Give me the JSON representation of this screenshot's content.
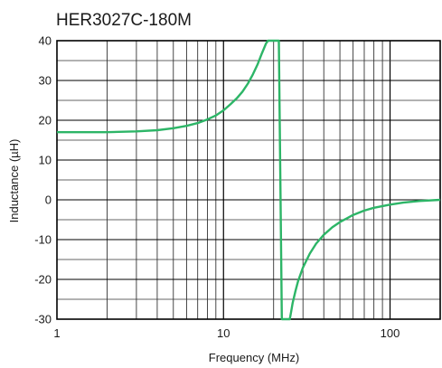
{
  "chart_data": {
    "type": "line",
    "title": "HER3027C-180M",
    "xlabel": "Frequency (MHz)",
    "ylabel": "Inductance (µH)",
    "x_scale": "log",
    "xlim": [
      1,
      200
    ],
    "ylim": [
      -30,
      40
    ],
    "x_ticks": [
      1,
      10,
      100
    ],
    "x_tick_labels": [
      "1",
      "10",
      "100"
    ],
    "y_ticks": [
      -30,
      -20,
      -10,
      0,
      10,
      20,
      30,
      40
    ],
    "y_tick_labels": [
      "-30",
      "-20",
      "-10",
      "0",
      "10",
      "20",
      "30",
      "40"
    ],
    "grid": true,
    "line_color": "#2db567",
    "series": [
      {
        "x": [
          1,
          2,
          3,
          4,
          5,
          6,
          7,
          8,
          9,
          10,
          11,
          12,
          13,
          14,
          15,
          16,
          17,
          18,
          18.5,
          19,
          19.3,
          21.5,
          22,
          22.4,
          23,
          24,
          25,
          25.5,
          26,
          27,
          28,
          30,
          33,
          36,
          40,
          45,
          50,
          60,
          70,
          80,
          100,
          120,
          150,
          200
        ],
        "y": [
          17,
          17,
          17.2,
          17.5,
          18,
          18.6,
          19.3,
          20.2,
          21.2,
          22.5,
          24,
          25.5,
          27.2,
          29.2,
          31.5,
          34,
          36.8,
          39.3,
          40,
          40,
          40,
          40,
          0,
          -30,
          -30,
          -30,
          -30,
          -28,
          -26,
          -23,
          -20.5,
          -17,
          -13.5,
          -11,
          -8.8,
          -6.9,
          -5.6,
          -3.8,
          -2.7,
          -2,
          -1.2,
          -0.7,
          -0.3,
          0
        ]
      }
    ]
  }
}
